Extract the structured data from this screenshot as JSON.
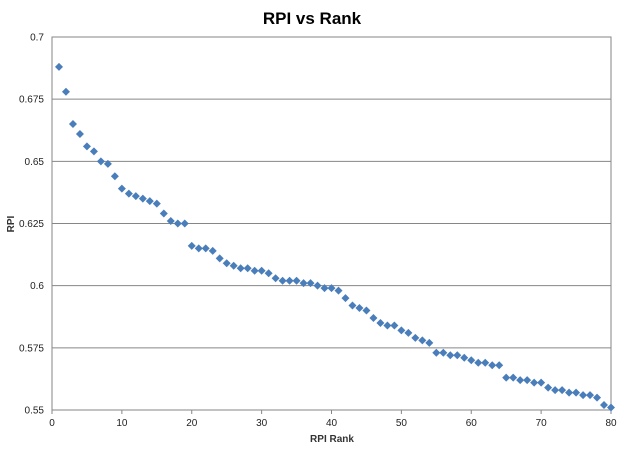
{
  "chart_data": {
    "type": "scatter",
    "title": "RPI vs Rank",
    "xlabel": "RPI Rank",
    "ylabel": "RPI",
    "xlim": [
      0,
      80
    ],
    "ylim": [
      0.55,
      0.7
    ],
    "x_ticks": [
      0,
      10,
      20,
      30,
      40,
      50,
      60,
      70,
      80
    ],
    "y_ticks": [
      0.55,
      0.575,
      0.6,
      0.625,
      0.65,
      0.675,
      0.7
    ],
    "x_tick_labels": [
      "0",
      "10",
      "20",
      "30",
      "40",
      "50",
      "60",
      "70",
      "80"
    ],
    "y_tick_labels": [
      "0.55",
      "0.575",
      "0.6",
      "0.625",
      "0.65",
      "0.675",
      "0.7"
    ],
    "grid": "horizontal",
    "legend": "none",
    "marker": "diamond",
    "color": "#4a7ebb",
    "series": [
      {
        "x": [
          1,
          2,
          3,
          4,
          5,
          6,
          7,
          8,
          9,
          10,
          11,
          12,
          13,
          14,
          15,
          16,
          17,
          18,
          19,
          20,
          21,
          22,
          23,
          24,
          25,
          26,
          27,
          28,
          29,
          30,
          31,
          32,
          33,
          34,
          35,
          36,
          37,
          38,
          39,
          40,
          41,
          42,
          43,
          44,
          45,
          46,
          47,
          48,
          49,
          50,
          51,
          52,
          53,
          54,
          55,
          56,
          57,
          58,
          59,
          60,
          61,
          62,
          63,
          64,
          65,
          66,
          67,
          68,
          69,
          70,
          71,
          72,
          73,
          74,
          75,
          76,
          77,
          78,
          79,
          80
        ],
        "values": [
          0.688,
          0.678,
          0.665,
          0.661,
          0.656,
          0.654,
          0.65,
          0.649,
          0.644,
          0.639,
          0.637,
          0.636,
          0.635,
          0.634,
          0.633,
          0.629,
          0.626,
          0.625,
          0.625,
          0.616,
          0.615,
          0.615,
          0.614,
          0.611,
          0.609,
          0.608,
          0.607,
          0.607,
          0.606,
          0.606,
          0.605,
          0.603,
          0.602,
          0.602,
          0.602,
          0.601,
          0.601,
          0.6,
          0.599,
          0.599,
          0.598,
          0.595,
          0.592,
          0.591,
          0.59,
          0.587,
          0.585,
          0.584,
          0.584,
          0.582,
          0.581,
          0.579,
          0.578,
          0.577,
          0.573,
          0.573,
          0.572,
          0.572,
          0.571,
          0.57,
          0.569,
          0.569,
          0.568,
          0.568,
          0.563,
          0.563,
          0.562,
          0.562,
          0.561,
          0.561,
          0.559,
          0.558,
          0.558,
          0.557,
          0.557,
          0.556,
          0.556,
          0.555,
          0.552,
          0.551
        ]
      }
    ]
  }
}
